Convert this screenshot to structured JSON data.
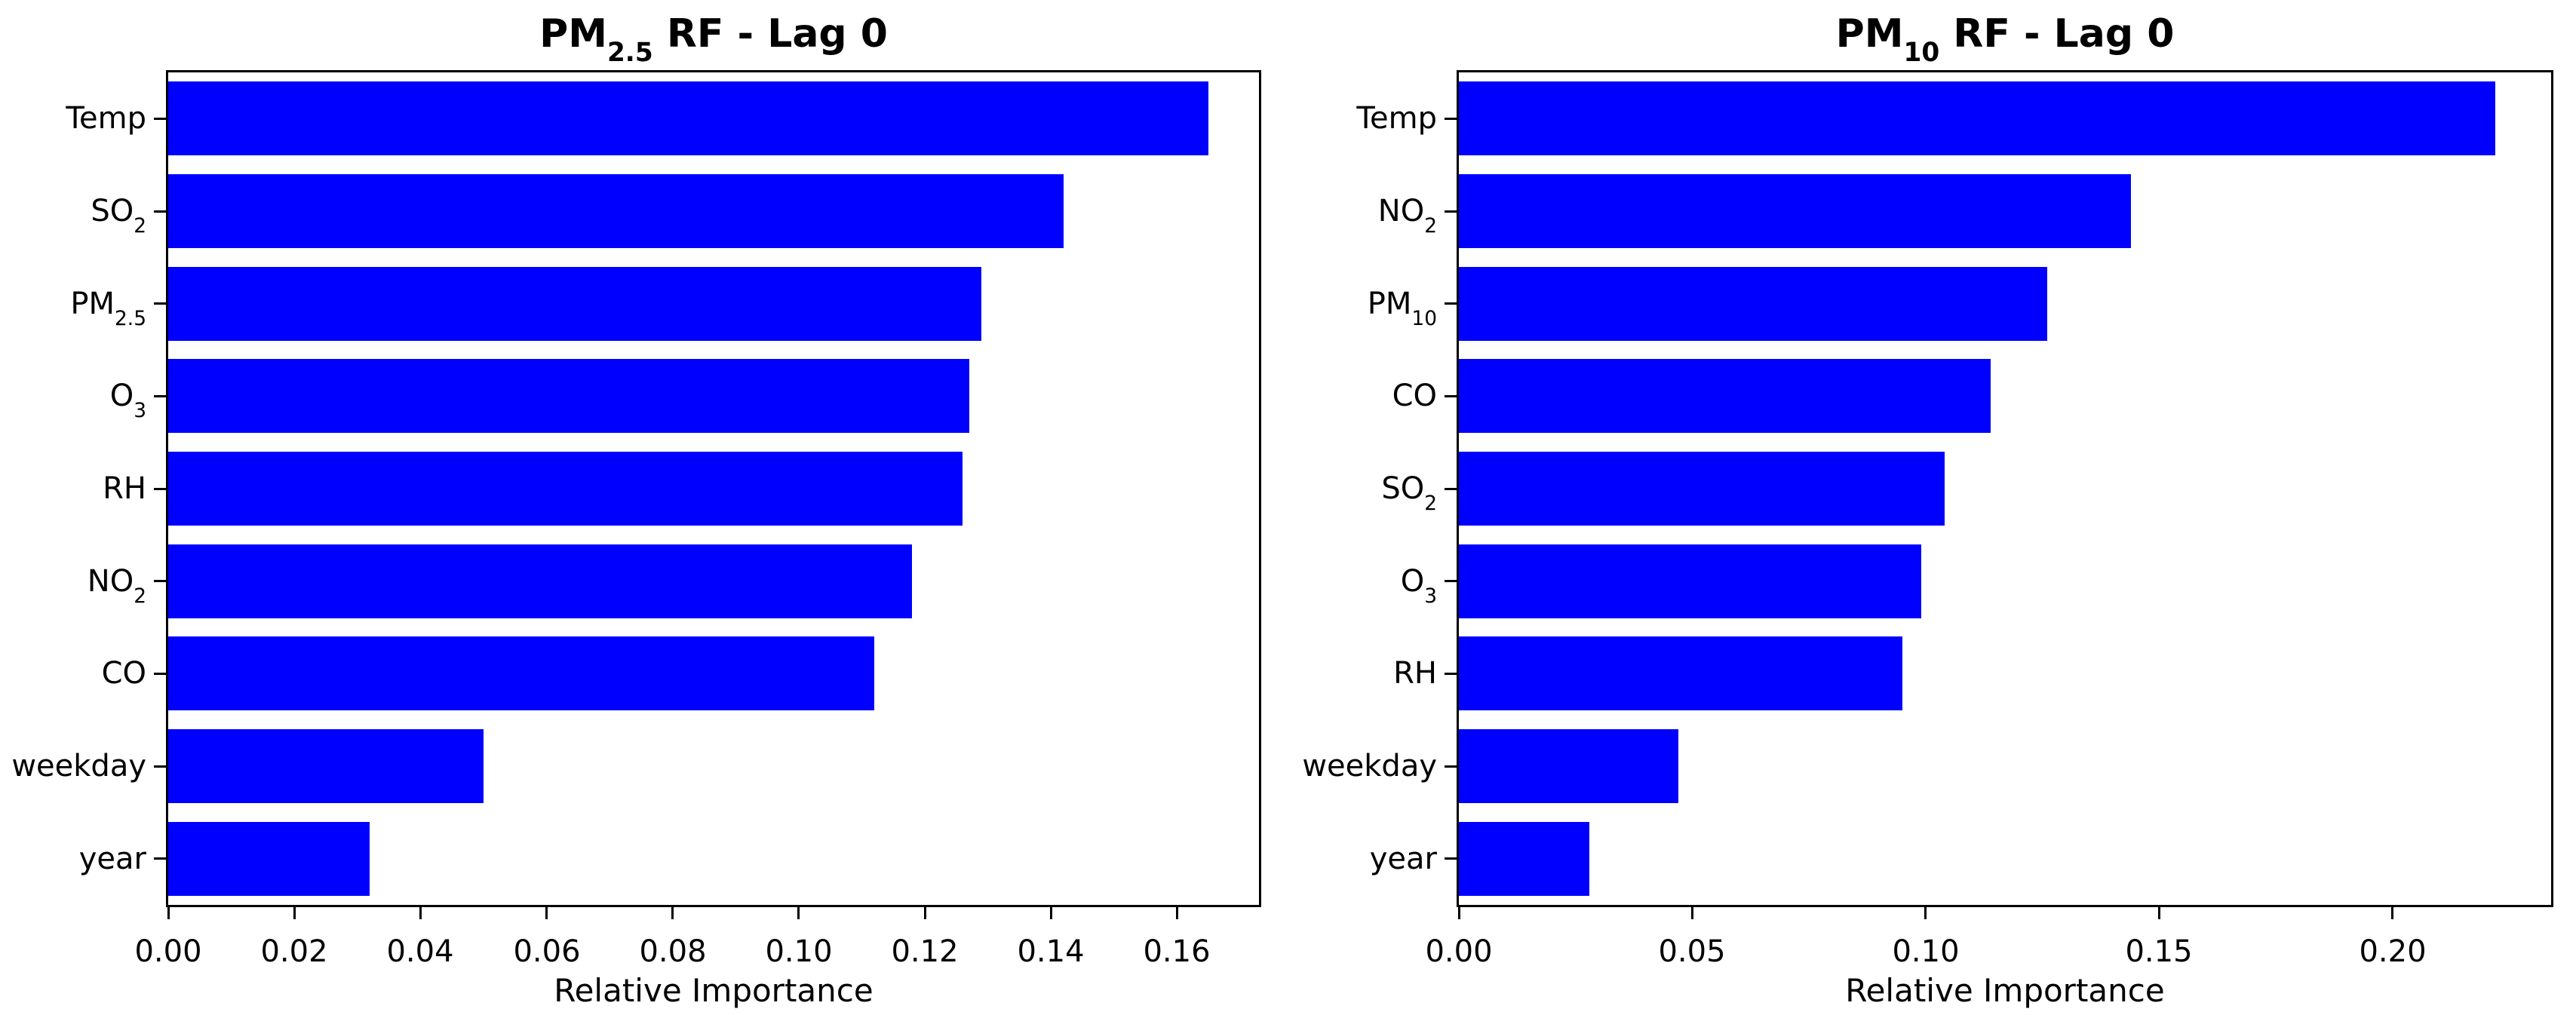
{
  "figure": {
    "background_color": "#ffffff",
    "bar_color": "#0000ff",
    "axis_color": "#000000",
    "text_color": "#000000"
  },
  "chart_data": [
    {
      "type": "bar",
      "orientation": "horizontal",
      "title": "PM_{2.5} RF - Lag 0",
      "xlabel": "Relative Importance",
      "categories": [
        "Temp",
        "SO_{2}",
        "PM_{2.5}",
        "O_{3}",
        "RH",
        "NO_{2}",
        "CO",
        "weekday",
        "year"
      ],
      "values": [
        0.165,
        0.142,
        0.129,
        0.127,
        0.126,
        0.118,
        0.112,
        0.05,
        0.032
      ],
      "xlim": [
        0,
        0.173
      ],
      "xtick_labels": [
        "0.00",
        "0.02",
        "0.04",
        "0.06",
        "0.08",
        "0.10",
        "0.12",
        "0.14",
        "0.16"
      ],
      "grid": false,
      "legend": "none"
    },
    {
      "type": "bar",
      "orientation": "horizontal",
      "title": "PM_{10} RF - Lag 0",
      "xlabel": "Relative Importance",
      "categories": [
        "Temp",
        "NO_{2}",
        "PM_{10}",
        "CO",
        "SO_{2}",
        "O_{3}",
        "RH",
        "weekday",
        "year"
      ],
      "values": [
        0.222,
        0.144,
        0.126,
        0.114,
        0.104,
        0.099,
        0.095,
        0.047,
        0.028
      ],
      "xlim": [
        0,
        0.234
      ],
      "xtick_labels": [
        "0.00",
        "0.05",
        "0.10",
        "0.15",
        "0.20"
      ],
      "grid": false,
      "legend": "none"
    }
  ]
}
